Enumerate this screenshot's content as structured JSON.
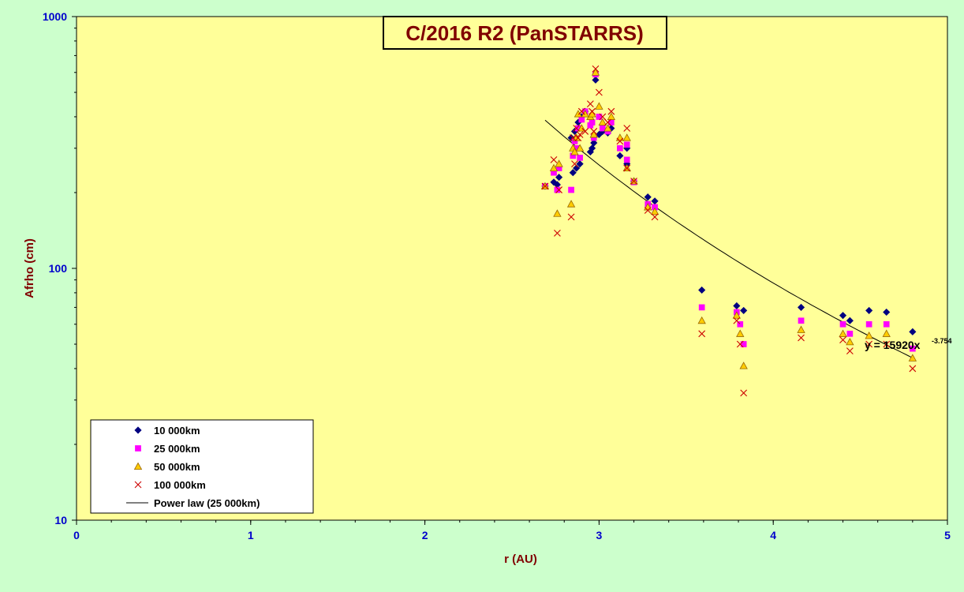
{
  "chart_data": {
    "type": "scatter",
    "title": "C/2016 R2 (PanSTARRS)",
    "xlabel": "r (AU)",
    "ylabel": "Afrho (cm)",
    "xlim": [
      0,
      5
    ],
    "ylim": [
      10,
      1000
    ],
    "yscale": "log",
    "xticks": [
      "0",
      "1",
      "2",
      "3",
      "4",
      "5"
    ],
    "yticks": [
      "10",
      "100",
      "1000"
    ],
    "grid": false,
    "legend_position": "bottom-left",
    "plot_background": "#ffff99",
    "page_background": "#ccffcc",
    "series": [
      {
        "name": "10 000km",
        "marker": "diamond",
        "color": "#000080",
        "points": [
          [
            2.69,
            212
          ],
          [
            2.74,
            220
          ],
          [
            2.76,
            215
          ],
          [
            2.77,
            230
          ],
          [
            2.84,
            330
          ],
          [
            2.85,
            240
          ],
          [
            2.86,
            350
          ],
          [
            2.87,
            250
          ],
          [
            2.88,
            380
          ],
          [
            2.89,
            260
          ],
          [
            2.9,
            400
          ],
          [
            2.92,
            420
          ],
          [
            2.95,
            290
          ],
          [
            2.96,
            300
          ],
          [
            2.97,
            315
          ],
          [
            2.98,
            560
          ],
          [
            3.0,
            340
          ],
          [
            3.02,
            350
          ],
          [
            3.05,
            345
          ],
          [
            3.07,
            360
          ],
          [
            3.12,
            280
          ],
          [
            3.16,
            260
          ],
          [
            3.16,
            300
          ],
          [
            3.2,
            222
          ],
          [
            3.28,
            192
          ],
          [
            3.32,
            185
          ],
          [
            3.59,
            82
          ],
          [
            3.79,
            71
          ],
          [
            3.83,
            68
          ],
          [
            4.16,
            70
          ],
          [
            4.4,
            65
          ],
          [
            4.44,
            62
          ],
          [
            4.55,
            68
          ],
          [
            4.65,
            67
          ],
          [
            4.8,
            56
          ]
        ]
      },
      {
        "name": "25 000km",
        "marker": "square",
        "color": "#ff00ff",
        "points": [
          [
            2.69,
            212
          ],
          [
            2.74,
            240
          ],
          [
            2.76,
            205
          ],
          [
            2.77,
            250
          ],
          [
            2.84,
            205
          ],
          [
            2.85,
            280
          ],
          [
            2.86,
            320
          ],
          [
            2.87,
            300
          ],
          [
            2.88,
            360
          ],
          [
            2.89,
            275
          ],
          [
            2.9,
            390
          ],
          [
            2.92,
            420
          ],
          [
            2.95,
            370
          ],
          [
            2.96,
            380
          ],
          [
            2.97,
            330
          ],
          [
            2.98,
            590
          ],
          [
            3.0,
            400
          ],
          [
            3.02,
            360
          ],
          [
            3.05,
            350
          ],
          [
            3.07,
            380
          ],
          [
            3.12,
            300
          ],
          [
            3.16,
            270
          ],
          [
            3.16,
            310
          ],
          [
            3.2,
            220
          ],
          [
            3.28,
            180
          ],
          [
            3.32,
            175
          ],
          [
            3.59,
            70
          ],
          [
            3.79,
            67
          ],
          [
            3.81,
            60
          ],
          [
            3.83,
            50
          ],
          [
            4.16,
            62
          ],
          [
            4.4,
            60
          ],
          [
            4.44,
            55
          ],
          [
            4.55,
            60
          ],
          [
            4.65,
            60
          ],
          [
            4.8,
            48
          ]
        ]
      },
      {
        "name": "50 000km",
        "marker": "triangle",
        "color": "#ffcc00",
        "points": [
          [
            2.69,
            212
          ],
          [
            2.74,
            250
          ],
          [
            2.76,
            165
          ],
          [
            2.77,
            260
          ],
          [
            2.84,
            180
          ],
          [
            2.85,
            300
          ],
          [
            2.86,
            290
          ],
          [
            2.87,
            330
          ],
          [
            2.88,
            410
          ],
          [
            2.89,
            300
          ],
          [
            2.9,
            360
          ],
          [
            2.92,
            410
          ],
          [
            2.95,
            400
          ],
          [
            2.96,
            410
          ],
          [
            2.97,
            340
          ],
          [
            2.98,
            600
          ],
          [
            3.0,
            440
          ],
          [
            3.02,
            380
          ],
          [
            3.05,
            360
          ],
          [
            3.07,
            400
          ],
          [
            3.12,
            330
          ],
          [
            3.16,
            250
          ],
          [
            3.16,
            330
          ],
          [
            3.2,
            222
          ],
          [
            3.28,
            175
          ],
          [
            3.32,
            168
          ],
          [
            3.59,
            62
          ],
          [
            3.79,
            65
          ],
          [
            3.81,
            55
          ],
          [
            3.83,
            41
          ],
          [
            4.16,
            57
          ],
          [
            4.4,
            55
          ],
          [
            4.44,
            51
          ],
          [
            4.55,
            54
          ],
          [
            4.65,
            55
          ],
          [
            4.8,
            44
          ]
        ]
      },
      {
        "name": "100 000km",
        "marker": "x",
        "color": "#cc0000",
        "points": [
          [
            2.69,
            212
          ],
          [
            2.74,
            270
          ],
          [
            2.76,
            138
          ],
          [
            2.77,
            205
          ],
          [
            2.84,
            160
          ],
          [
            2.85,
            330
          ],
          [
            2.86,
            260
          ],
          [
            2.87,
            360
          ],
          [
            2.88,
            330
          ],
          [
            2.89,
            340
          ],
          [
            2.9,
            420
          ],
          [
            2.92,
            350
          ],
          [
            2.95,
            450
          ],
          [
            2.96,
            420
          ],
          [
            2.97,
            350
          ],
          [
            2.98,
            620
          ],
          [
            3.0,
            500
          ],
          [
            3.02,
            400
          ],
          [
            3.05,
            380
          ],
          [
            3.07,
            420
          ],
          [
            3.12,
            320
          ],
          [
            3.16,
            250
          ],
          [
            3.16,
            360
          ],
          [
            3.2,
            222
          ],
          [
            3.28,
            170
          ],
          [
            3.32,
            160
          ],
          [
            3.59,
            55
          ],
          [
            3.79,
            62
          ],
          [
            3.81,
            50
          ],
          [
            3.83,
            32
          ],
          [
            4.16,
            53
          ],
          [
            4.4,
            52
          ],
          [
            4.44,
            47
          ],
          [
            4.55,
            50
          ],
          [
            4.65,
            50
          ],
          [
            4.8,
            40
          ]
        ]
      },
      {
        "name": "Power law (25 000km)",
        "type": "line",
        "color": "#000000",
        "fit": {
          "coefficient": 15920,
          "exponent": -3.754,
          "x_range": [
            2.69,
            4.8
          ]
        }
      }
    ],
    "annotation": {
      "equation_text": "y = 15920x",
      "equation_exponent": "-3.754"
    }
  }
}
